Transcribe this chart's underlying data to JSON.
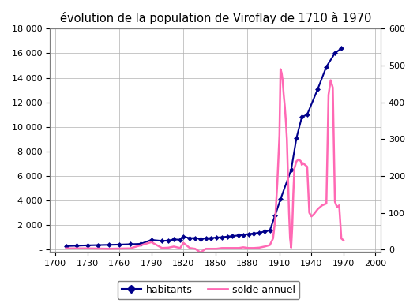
{
  "title": "évolution de la population de Viroflay de 1710 à 1970",
  "title_fontsize": 10.5,
  "background_color": "#ffffff",
  "plot_background": "#ffffff",
  "habitants_color": "#00008B",
  "solde_color": "#FF69B4",
  "xlabel_ticks": [
    1700,
    1730,
    1760,
    1790,
    1820,
    1850,
    1880,
    1910,
    1940,
    1970,
    2000
  ],
  "left_yticks": [
    0,
    2000,
    4000,
    6000,
    8000,
    10000,
    12000,
    14000,
    16000,
    18000
  ],
  "left_ytick_labels": [
    "-",
    "2 000",
    "4 000",
    "6 000",
    "8 000",
    "10 000",
    "12 000",
    "14 000",
    "16 000",
    "18 000"
  ],
  "right_yticks": [
    0,
    100,
    200,
    300,
    400,
    500,
    600
  ],
  "ylim_left": [
    -200,
    18000
  ],
  "ylim_right": [
    -6.67,
    600
  ],
  "xlim": [
    1695,
    2005
  ],
  "habitants_x": [
    1710,
    1720,
    1730,
    1740,
    1750,
    1760,
    1770,
    1780,
    1790,
    1800,
    1806,
    1811,
    1817,
    1820,
    1826,
    1831,
    1836,
    1841,
    1846,
    1851,
    1856,
    1861,
    1866,
    1872,
    1876,
    1881,
    1886,
    1891,
    1896,
    1901,
    1906,
    1911,
    1921,
    1926,
    1931,
    1936,
    1946,
    1954,
    1962,
    1968
  ],
  "habitants_y": [
    280,
    310,
    340,
    360,
    380,
    400,
    430,
    460,
    780,
    700,
    730,
    820,
    800,
    1050,
    920,
    940,
    870,
    910,
    940,
    970,
    1000,
    1050,
    1100,
    1150,
    1200,
    1260,
    1310,
    1360,
    1470,
    1560,
    2800,
    4100,
    6500,
    9100,
    10800,
    11000,
    13100,
    14900,
    16000,
    16400
  ],
  "solde_x": [
    1710,
    1730,
    1750,
    1770,
    1790,
    1800,
    1806,
    1811,
    1817,
    1820,
    1826,
    1831,
    1836,
    1841,
    1846,
    1851,
    1856,
    1861,
    1866,
    1872,
    1876,
    1881,
    1886,
    1891,
    1896,
    1901,
    1904,
    1906,
    1908,
    1910,
    1911,
    1912,
    1913,
    1914,
    1915,
    1916,
    1917,
    1918,
    1919,
    1920,
    1921,
    1922,
    1923,
    1924,
    1926,
    1928,
    1930,
    1931,
    1932,
    1934,
    1936,
    1938,
    1940,
    1942,
    1946,
    1950,
    1954,
    1956,
    1958,
    1960,
    1962,
    1964,
    1966,
    1968,
    1970
  ],
  "solde_y": [
    3,
    3,
    2,
    3,
    20,
    4,
    5,
    8,
    4,
    18,
    4,
    2,
    -8,
    2,
    2,
    2,
    4,
    4,
    4,
    4,
    6,
    4,
    4,
    5,
    8,
    12,
    30,
    80,
    180,
    310,
    490,
    480,
    460,
    420,
    390,
    350,
    300,
    200,
    100,
    30,
    5,
    60,
    150,
    220,
    240,
    245,
    240,
    230,
    235,
    230,
    225,
    100,
    90,
    95,
    110,
    120,
    125,
    420,
    460,
    440,
    130,
    115,
    120,
    30,
    25
  ],
  "legend_labels": [
    "habitants",
    "solde annuel"
  ],
  "grid_color": "#b0b0b0",
  "grid_linewidth": 0.5
}
